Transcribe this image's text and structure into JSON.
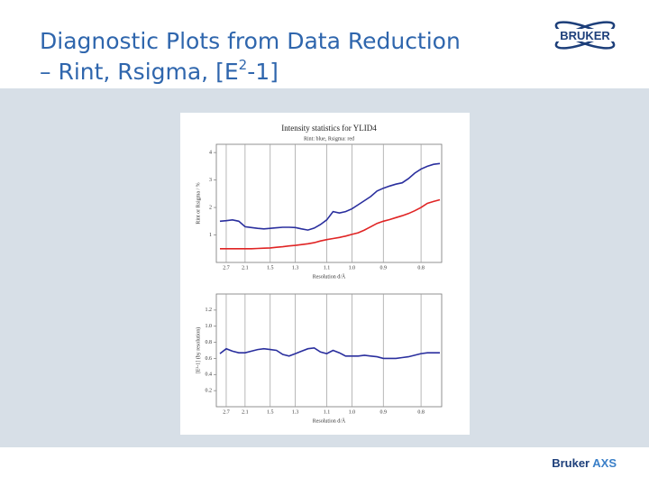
{
  "slide": {
    "title_parts": [
      "Diagnostic Plots from Data Reduction",
      "– Rint, Rsigma, [E",
      "2",
      "-1]"
    ],
    "logo": "BRUKER",
    "footer_brand": "Bruker",
    "footer_unit": "AXS"
  },
  "chart_data": [
    {
      "type": "line",
      "title": "Intensity statistics for YLID4",
      "subtitle": "Rint: blue, Rsigma: red",
      "x_label": "Resolution d/Å",
      "y_label": "Rint or Rsigma / %",
      "categories": [
        null,
        "2.7",
        null,
        null,
        "2.1",
        null,
        null,
        null,
        "1.5",
        null,
        null,
        null,
        "1.3",
        null,
        null,
        null,
        null,
        "1.1",
        null,
        null,
        null,
        "1.0",
        null,
        null,
        null,
        null,
        "0.9",
        null,
        null,
        null,
        null,
        null,
        "0.8",
        null,
        null,
        null
      ],
      "series": [
        {
          "name": "Rint",
          "color": "#2a2f9e",
          "values": [
            1.5,
            1.52,
            1.55,
            1.5,
            1.3,
            1.27,
            1.24,
            1.22,
            1.24,
            1.26,
            1.28,
            1.28,
            1.27,
            1.22,
            1.18,
            1.25,
            1.38,
            1.55,
            1.85,
            1.8,
            1.85,
            1.95,
            2.1,
            2.25,
            2.4,
            2.6,
            2.7,
            2.78,
            2.85,
            2.9,
            3.05,
            3.25,
            3.4,
            3.5,
            3.57,
            3.6
          ]
        },
        {
          "name": "Rsigma",
          "color": "#e02424",
          "values": [
            0.5,
            0.5,
            0.5,
            0.5,
            0.5,
            0.5,
            0.51,
            0.52,
            0.53,
            0.55,
            0.57,
            0.6,
            0.62,
            0.65,
            0.68,
            0.72,
            0.78,
            0.83,
            0.87,
            0.91,
            0.96,
            1.02,
            1.08,
            1.18,
            1.3,
            1.42,
            1.5,
            1.56,
            1.63,
            1.7,
            1.78,
            1.88,
            2.0,
            2.15,
            2.22,
            2.28
          ]
        }
      ],
      "ylim": [
        0,
        4.3
      ],
      "yticks": [
        1,
        2,
        3,
        4
      ],
      "grid": "x"
    },
    {
      "type": "line",
      "x_label": "Resolution d/Å",
      "y_label": "[E²-1] (by resolution)",
      "categories": [
        null,
        "2.7",
        null,
        null,
        "2.1",
        null,
        null,
        null,
        "1.5",
        null,
        null,
        null,
        "1.3",
        null,
        null,
        null,
        null,
        "1.1",
        null,
        null,
        null,
        "1.0",
        null,
        null,
        null,
        null,
        "0.9",
        null,
        null,
        null,
        null,
        null,
        "0.8",
        null,
        null,
        null
      ],
      "series": [
        {
          "name": "[E²-1]",
          "color": "#2a2f9e",
          "values": [
            0.66,
            0.72,
            0.69,
            0.67,
            0.67,
            0.69,
            0.71,
            0.72,
            0.71,
            0.7,
            0.65,
            0.63,
            0.66,
            0.69,
            0.72,
            0.73,
            0.68,
            0.66,
            0.7,
            0.67,
            0.63,
            0.63,
            0.63,
            0.64,
            0.63,
            0.62,
            0.6,
            0.6,
            0.6,
            0.61,
            0.62,
            0.64,
            0.66,
            0.67,
            0.67,
            0.67
          ]
        }
      ],
      "ylim": [
        0,
        1.4
      ],
      "yticks": [
        0.2,
        0.4,
        0.6,
        0.8,
        {
          "value": 1,
          "label": "1.0"
        },
        1.2
      ],
      "grid": "x"
    }
  ]
}
